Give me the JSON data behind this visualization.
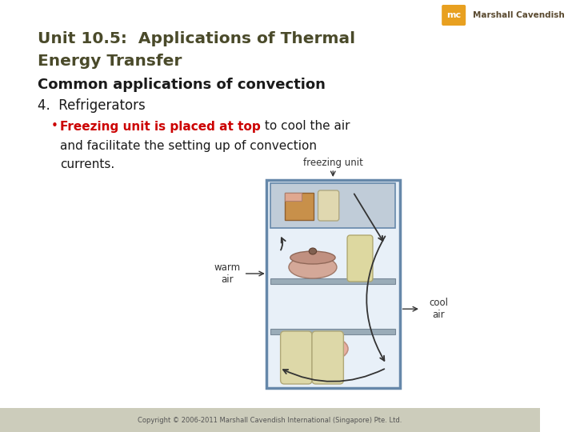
{
  "background_color": "#ffffff",
  "title_line1": "Unit 10.5:  Applications of Thermal",
  "title_line2": "Energy Transfer",
  "title_color": "#4a4a2a",
  "subtitle": "Common applications of convection",
  "subtitle_color": "#1a1a1a",
  "point_number": "4.  Refrigerators",
  "point_color": "#1a1a1a",
  "bullet_bold_text": "Freezing unit is placed at top",
  "bullet_bold_color": "#cc0000",
  "bullet_normal_text1": " to cool the air",
  "bullet_normal_text2": "and facilitate the setting up of convection",
  "bullet_normal_text3": "currents.",
  "bullet_normal_color": "#1a1a1a",
  "footer_text": "Copyright © 2006-2011 Marshall Cavendish International (Singapore) Pte. Ltd.",
  "footer_color": "#555555",
  "footer_bg": "#ccccbb",
  "logo_bg": "#e8a020",
  "logo_mc": "mc",
  "logo_name": "Marshall Cavendish",
  "fridge_label_freezing": "freezing unit",
  "fridge_label_warm": "warm\nair",
  "fridge_label_cool": "cool\nair",
  "fridge_color_bg": "#e8f0f8",
  "fridge_color_border": "#6688aa",
  "fridge_shelf_color": "#9aacb8",
  "fridge_freeze_bg": "#c0ccd8",
  "arrow_color": "#333333"
}
